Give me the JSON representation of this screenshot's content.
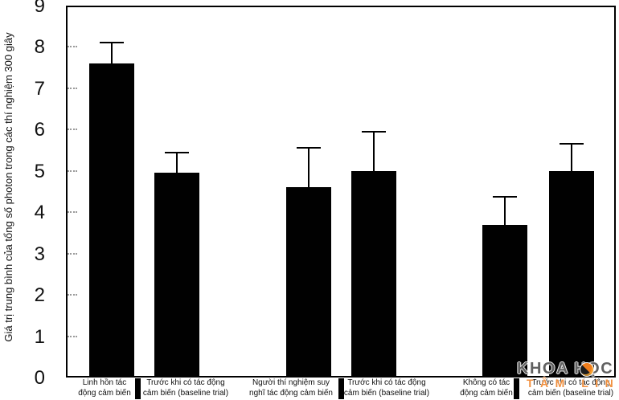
{
  "chart_data": {
    "type": "bar",
    "title": "",
    "xlabel": "",
    "ylabel": "Giá trị trung bình của tổng số photon trong các thí nghiệm 300 giây",
    "ylim": [
      0,
      9
    ],
    "yticks": [
      0,
      1,
      2,
      3,
      4,
      5,
      6,
      7,
      8,
      9
    ],
    "grid": false,
    "legend_position": "none",
    "bar_color": "#000000",
    "categories": [
      "Linh hồn tác động cảm biến",
      "Trước khi có tác động cảm biến (baseline trial)",
      "Người thí nghiệm suy nghĩ tác động cảm biến",
      "Trước khi có tác động cảm biến (baseline trial)",
      "Không có tác động cảm biến",
      "Trước khi có tác động cảm biến (baseline trial)"
    ],
    "category_lines": [
      [
        "Linh hồn tác",
        "động cảm biến"
      ],
      [
        "Trước khi có tác động",
        "cảm biến (baseline trial)"
      ],
      [
        "Người thí nghiệm suy",
        "nghĩ tác động cảm biến"
      ],
      [
        "Trước khi có tác động",
        "cảm biến (baseline trial)"
      ],
      [
        "Không có tác",
        "động cảm biến"
      ],
      [
        "Trước khi có tác động",
        "cảm biến (baseline trial)"
      ]
    ],
    "values": [
      7.6,
      4.95,
      4.6,
      5.0,
      3.7,
      5.0
    ],
    "errors_upper": [
      0.5,
      0.5,
      0.95,
      0.95,
      0.67,
      0.65
    ],
    "groups": [
      [
        0,
        1
      ],
      [
        2,
        3
      ],
      [
        4,
        5
      ]
    ]
  },
  "watermark": {
    "title": "KHOA HỌC",
    "subtitle": "TÂM LINH",
    "accent_color": "#ef7d1d"
  }
}
